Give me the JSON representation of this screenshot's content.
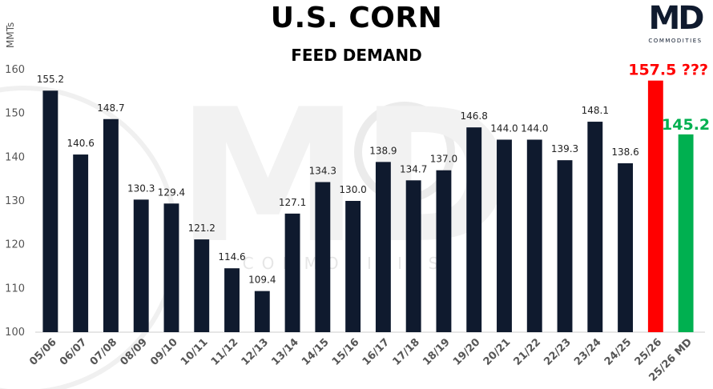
{
  "logo": {
    "letters": "MD",
    "subtext": "COMMODITIES"
  },
  "watermark": {
    "letters": "MD",
    "text": "COMMODITIES"
  },
  "colors": {
    "bar": "#0f1a2e",
    "usda": "#ff0000",
    "md": "#00b050",
    "usda_label": "#ff0000",
    "md_label": "#00b050",
    "axis_text": "#555555"
  },
  "chart_data": {
    "type": "bar",
    "title": "U.S. CORN",
    "subtitle": "FEED DEMAND",
    "ylabel": "MMTs",
    "xlabel": "",
    "ylim": [
      100,
      160
    ],
    "yticks": [
      100,
      110,
      120,
      130,
      140,
      150,
      160
    ],
    "grid": false,
    "categories": [
      "05/06",
      "06/07",
      "07/08",
      "08/09",
      "09/10",
      "10/11",
      "11/12",
      "12/13",
      "13/14",
      "14/15",
      "15/16",
      "16/17",
      "17/18",
      "18/19",
      "19/20",
      "20/21",
      "21/22",
      "22/23",
      "23/24",
      "24/25",
      "25/26",
      "25/26 MD"
    ],
    "values": [
      155.2,
      140.6,
      148.7,
      130.3,
      129.4,
      121.2,
      114.6,
      109.4,
      127.1,
      134.3,
      130.0,
      138.9,
      134.7,
      137.0,
      146.8,
      144.0,
      144.0,
      139.3,
      148.1,
      138.6,
      157.5,
      145.2
    ],
    "data_labels": [
      "155.2",
      "140.6",
      "148.7",
      "130.3",
      "129.4",
      "121.2",
      "114.6",
      "109.4",
      "127.1",
      "134.3",
      "130.0",
      "138.9",
      "134.7",
      "137.0",
      "146.8",
      "144.0",
      "144.0",
      "139.3",
      "148.1",
      "138.6",
      "157.5 ???",
      "145.2"
    ],
    "highlight": {
      "25/26": "usda",
      "25/26 MD": "md"
    }
  }
}
